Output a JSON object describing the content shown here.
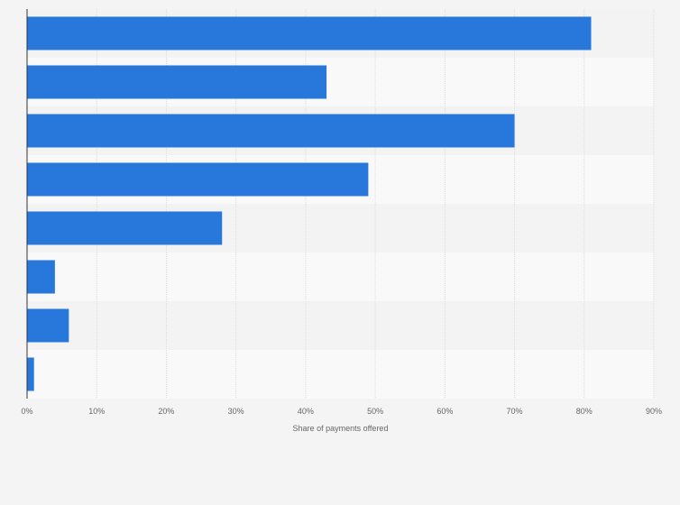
{
  "chart_data": {
    "type": "bar",
    "orientation": "horizontal",
    "categories": [
      "",
      "",
      "",
      "",
      "",
      "",
      "",
      ""
    ],
    "values": [
      81,
      43,
      70,
      49,
      28,
      4,
      6,
      1
    ],
    "xlabel": "Share of payments offered",
    "ylabel": "",
    "xlim": [
      0,
      90
    ],
    "x_ticks": [
      0,
      10,
      20,
      30,
      40,
      50,
      60,
      70,
      80,
      90
    ],
    "x_tick_labels": [
      "0%",
      "10%",
      "20%",
      "30%",
      "40%",
      "50%",
      "60%",
      "70%",
      "80%",
      "90%"
    ],
    "grid": true,
    "legend": "none",
    "colors": {
      "bar": "#2878dc",
      "band_dark": "#f3f3f3",
      "band_light": "#f9f9f9",
      "grid": "#dcdcdc",
      "axis": "#333333",
      "text": "#666666"
    }
  }
}
